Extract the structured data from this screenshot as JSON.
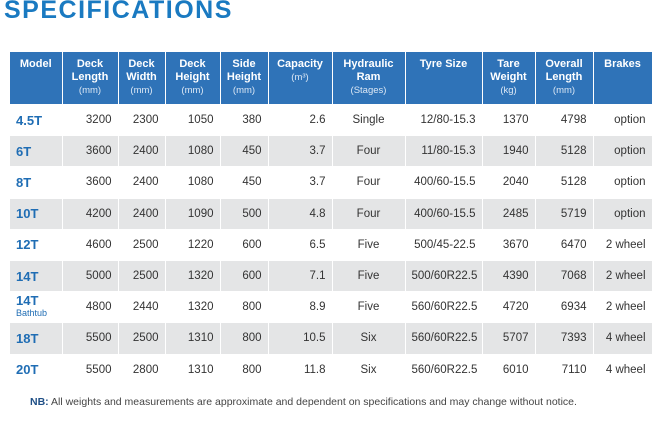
{
  "title": "SPECIFICATIONS",
  "table": {
    "header": [
      {
        "label": "Model"
      },
      {
        "label": "Deck Length",
        "unit": "(mm)"
      },
      {
        "label": "Deck Width",
        "unit": "(mm)"
      },
      {
        "label": "Deck Height",
        "unit": "(mm)"
      },
      {
        "label": "Side Height",
        "unit": "(mm)"
      },
      {
        "label": "Capacity",
        "unit": "(m³)"
      },
      {
        "label": "Hydraulic Ram",
        "unit": "(Stages)"
      },
      {
        "label": "Tyre Size"
      },
      {
        "label": "Tare Weight",
        "unit": "(kg)"
      },
      {
        "label": "Overall Length",
        "unit": "(mm)"
      },
      {
        "label": "Brakes"
      }
    ],
    "rows": [
      {
        "model": "4.5T",
        "cells": [
          "3200",
          "2300",
          "1050",
          "380",
          "2.6",
          "Single",
          "12/80-15.3",
          "1370",
          "4798",
          "option"
        ]
      },
      {
        "model": "6T",
        "cells": [
          "3600",
          "2400",
          "1080",
          "450",
          "3.7",
          "Four",
          "11/80-15.3",
          "1940",
          "5128",
          "option"
        ]
      },
      {
        "model": "8T",
        "cells": [
          "3600",
          "2400",
          "1080",
          "450",
          "3.7",
          "Four",
          "400/60-15.5",
          "2040",
          "5128",
          "option"
        ]
      },
      {
        "model": "10T",
        "cells": [
          "4200",
          "2400",
          "1090",
          "500",
          "4.8",
          "Four",
          "400/60-15.5",
          "2485",
          "5719",
          "option"
        ]
      },
      {
        "model": "12T",
        "cells": [
          "4600",
          "2500",
          "1220",
          "600",
          "6.5",
          "Five",
          "500/45-22.5",
          "3670",
          "6470",
          "2 wheel"
        ]
      },
      {
        "model": "14T",
        "cells": [
          "5000",
          "2500",
          "1320",
          "600",
          "7.1",
          "Five",
          "500/60R22.5",
          "4390",
          "7068",
          "2 wheel"
        ]
      },
      {
        "model": "14T",
        "sub": "Bathtub",
        "cells": [
          "4800",
          "2440",
          "1320",
          "800",
          "8.9",
          "Five",
          "560/60R22.5",
          "4720",
          "6934",
          "2 wheel"
        ]
      },
      {
        "model": "18T",
        "cells": [
          "5500",
          "2500",
          "1310",
          "800",
          "10.5",
          "Six",
          "560/60R22.5",
          "5707",
          "7393",
          "4 wheel"
        ]
      },
      {
        "model": "20T",
        "cells": [
          "5500",
          "2800",
          "1310",
          "800",
          "11.8",
          "Six",
          "560/60R22.5",
          "6010",
          "7110",
          "4 wheel"
        ]
      }
    ]
  },
  "note": {
    "label": "NB:",
    "text": "All weights and measurements are approximate and dependent on specifications and may change without notice."
  }
}
